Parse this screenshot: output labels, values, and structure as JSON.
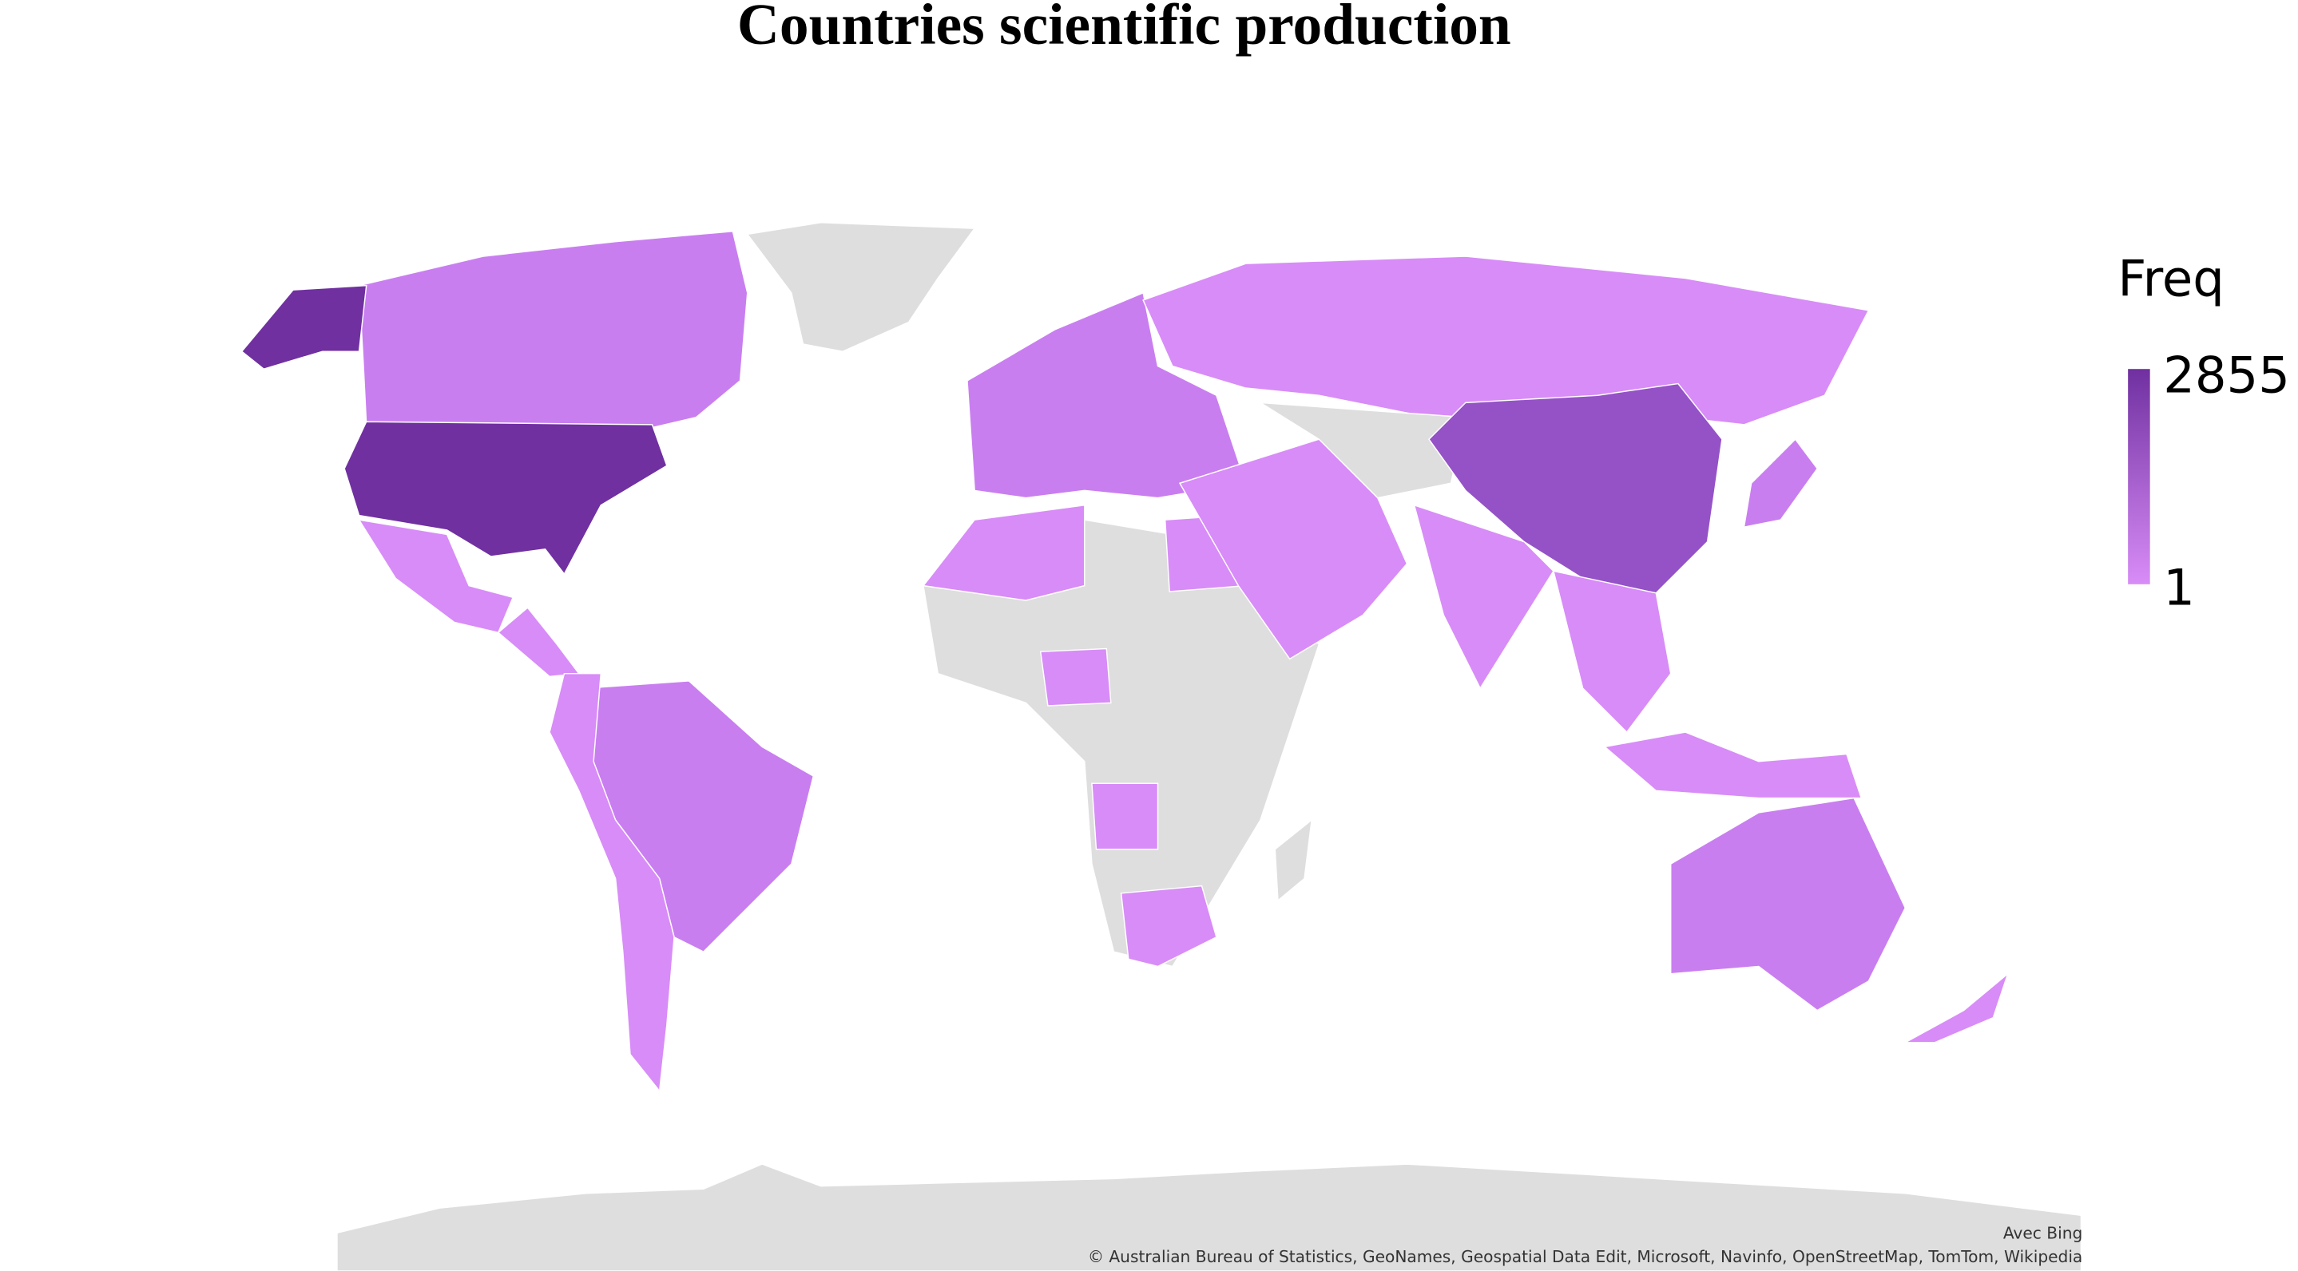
{
  "title": "Countries scientific production",
  "legend": {
    "title": "Freq",
    "max": 2855,
    "min": 1,
    "colors": [
      "#d88cf7",
      "#7030a0"
    ]
  },
  "attribution": {
    "provider": "Avec Bing",
    "credits": "© Australian Bureau of Statistics, GeoNames, Geospatial Data Edit, Microsoft, Navinfo, OpenStreetMap, TomTom, Wikipedia"
  }
}
